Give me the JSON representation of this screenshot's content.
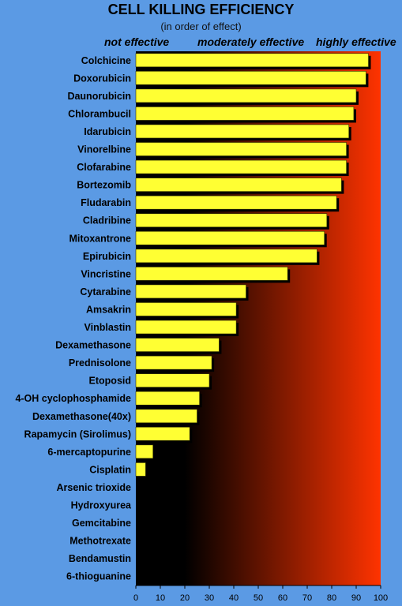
{
  "chart_data": {
    "type": "bar",
    "orientation": "horizontal",
    "title": "CELL KILLING EFFICIENCY",
    "subtitle": "(in order of effect)",
    "scale_labels": [
      "not effective",
      "moderately effective",
      "highly effective"
    ],
    "categories": [
      "Colchicine",
      "Doxorubicin",
      "Daunorubicin",
      "Chlorambucil",
      "Idarubicin",
      "Vinorelbine",
      "Clofarabine",
      "Bortezomib",
      "Fludarabin",
      "Cladribine",
      "Mitoxantrone",
      "Epirubicin",
      "Vincristine",
      "Cytarabine",
      "Amsakrin",
      "Vinblastin",
      "Dexamethasone",
      "Prednisolone",
      "Etoposid",
      "4-OH cyclophosphamide",
      "Dexamethasone(40x)",
      "Rapamycin (Sirolimus)",
      "6-mercaptopurine",
      "Cisplatin",
      "Arsenic trioxide",
      "Hydroxyurea",
      "Gemcitabine",
      "Methotrexate",
      "Bendamustin",
      "6-thioguanine"
    ],
    "values": [
      95,
      94,
      90,
      89,
      87,
      86,
      86,
      84,
      82,
      78,
      77,
      74,
      62,
      45,
      41,
      41,
      34,
      31,
      30,
      26,
      25,
      22,
      7,
      4,
      0,
      0,
      0,
      0,
      0,
      0
    ],
    "xlim": [
      0,
      100
    ],
    "xticks": [
      0,
      10,
      20,
      30,
      40,
      50,
      60,
      70,
      80,
      90,
      100
    ],
    "xlabel": "",
    "ylabel": "",
    "grid": false,
    "legend": "none",
    "colors": {
      "bar_fill": "#ffff33",
      "bar_shadow": "#000000",
      "gradient_start": "#000000",
      "gradient_end": "#ff3300",
      "page_background": "#5b9ae4"
    }
  }
}
